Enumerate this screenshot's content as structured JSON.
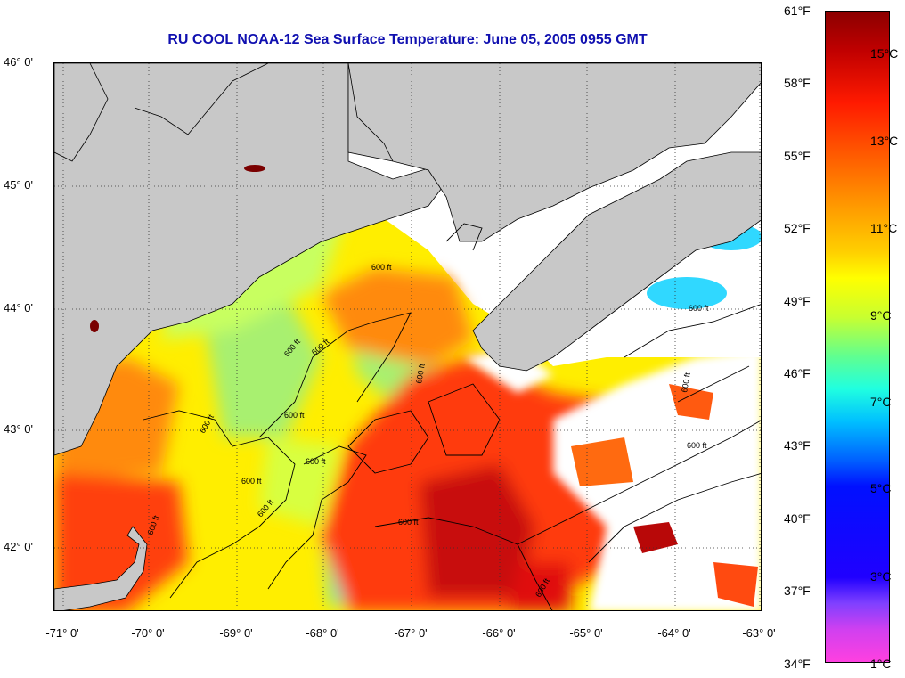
{
  "title": "RU COOL  NOAA-12  Sea Surface Temperature:  June 05, 2005 0955 GMT",
  "map": {
    "lat_labels": [
      "46° 0'",
      "45° 0'",
      "44° 0'",
      "43° 0'",
      "42° 0'"
    ],
    "lon_labels": [
      "-71° 0'",
      "-70° 0'",
      "-69° 0'",
      "-68° 0'",
      "-67° 0'",
      "-66° 0'",
      "-65° 0'",
      "-64° 0'",
      "-63° 0'"
    ],
    "contour_labels": [
      "600 ft",
      "600 ft",
      "600 ft",
      "600 ft",
      "600 ft",
      "600 ft",
      "600 ft",
      "600 ft",
      "600 ft",
      "600 ft",
      "600 ft",
      "600 ft",
      "600 ft",
      "600 ft",
      "600 ft"
    ],
    "colors": {
      "land": "#c8c8c8",
      "cloud": "#ffffff",
      "warm": "#d81010",
      "mid": "#ff7a00",
      "cool": "#ffee00",
      "cold": "#30e0ff"
    }
  },
  "colorbar": {
    "fahrenheit": [
      "61°F",
      "58°F",
      "55°F",
      "52°F",
      "49°F",
      "46°F",
      "43°F",
      "40°F",
      "37°F",
      "34°F"
    ],
    "celsius": [
      "15°C",
      "13°C",
      "11°C",
      "9°C",
      "7°C",
      "5°C",
      "3°C",
      "1°C"
    ]
  }
}
